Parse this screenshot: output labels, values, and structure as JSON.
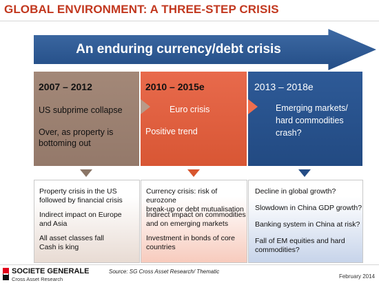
{
  "title": "GLOBAL ENVIRONMENT: A THREE-STEP CRISIS",
  "banner": "An enduring currency/debt crisis",
  "phases": [
    {
      "period": "2007 – 2012",
      "heading": "US subprime collapse",
      "detail": [
        "Over, as property is",
        "bottoming out"
      ]
    },
    {
      "period": "2010 – 2015e",
      "heading": "Euro crisis",
      "detail": [
        "Positive trend"
      ]
    },
    {
      "period": "2013 – 2018e",
      "heading": [
        "Emerging markets/",
        "hard commodities",
        "crash?"
      ]
    }
  ],
  "boxes": [
    {
      "items": [
        [
          "Property crisis in the US",
          "followed by financial crisis"
        ],
        [
          "Indirect impact on Europe",
          "and Asia"
        ],
        [
          "All asset classes fall",
          "Cash is king"
        ]
      ]
    },
    {
      "items": [
        [
          "Currency crisis: risk of eurozone",
          "break-up or debt mutualisation"
        ],
        [
          "Indirect impact on commodities",
          "and on emerging markets"
        ],
        [
          "Investment in bonds of core",
          "countries"
        ]
      ]
    },
    {
      "items": [
        [
          "Decline in global growth?"
        ],
        [
          "Slowdown in China GDP growth?"
        ],
        [
          "Banking system in China at risk?"
        ],
        [
          "Fall of EM equities and hard",
          "commodities?"
        ]
      ]
    }
  ],
  "footer": {
    "company": "SOCIETE GENERALE",
    "division": "Cross Asset Research",
    "source": "Source: SG Cross Asset Research/ Thematic",
    "date": "February 2014"
  },
  "colors": {
    "title": "#c2381f",
    "banner": "#2b5590",
    "phase1": "#9c8171",
    "phase2": "#e0603f",
    "phase3": "#27508a"
  }
}
